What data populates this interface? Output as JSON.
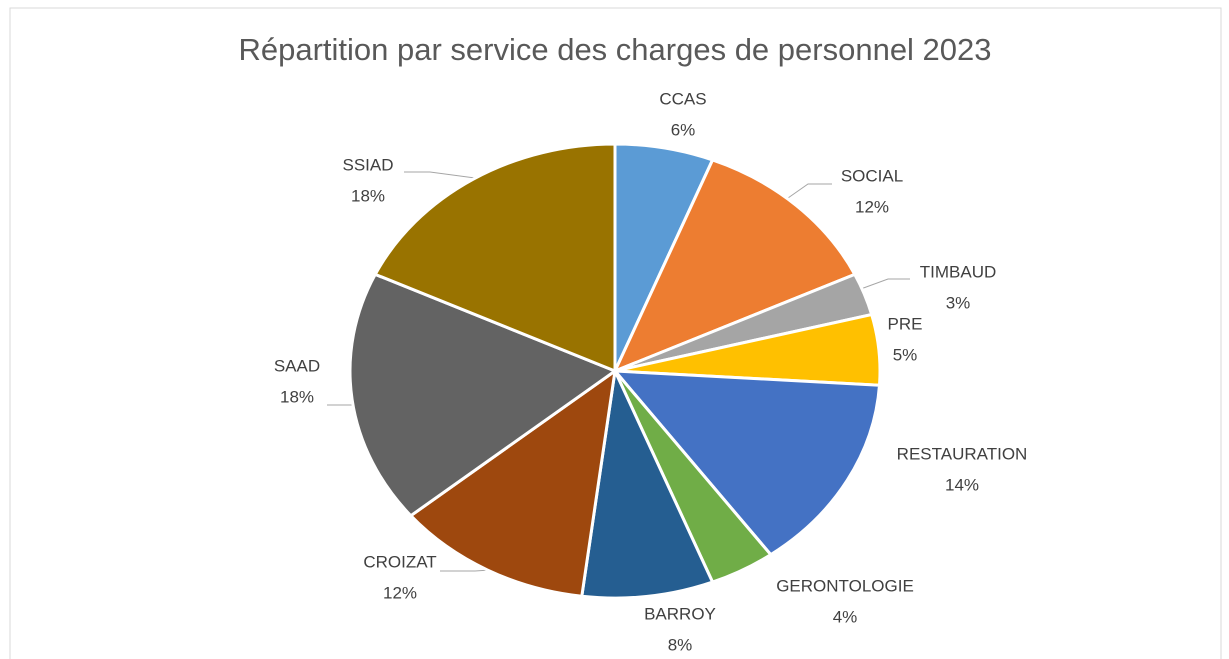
{
  "chart_data": {
    "type": "pie",
    "title": "Répartition par service des charges de personnel 2023",
    "categories": [
      "CCAS",
      "SOCIAL",
      "TIMBAUD",
      "PRE",
      "RESTAURATION",
      "GERONTOLOGIE",
      "BARROY",
      "CROIZAT",
      "SAAD",
      "SSIAD"
    ],
    "values": [
      6,
      12,
      3,
      5,
      14,
      4,
      8,
      12,
      18,
      18
    ],
    "value_labels": [
      "6%",
      "12%",
      "3%",
      "5%",
      "14%",
      "4%",
      "8%",
      "12%",
      "18%",
      "18%"
    ],
    "colors": [
      "#5b9bd5",
      "#ed7d31",
      "#a5a5a5",
      "#ffc000",
      "#4472c4",
      "#70ad47",
      "#255e91",
      "#9e480e",
      "#636363",
      "#997300"
    ]
  }
}
